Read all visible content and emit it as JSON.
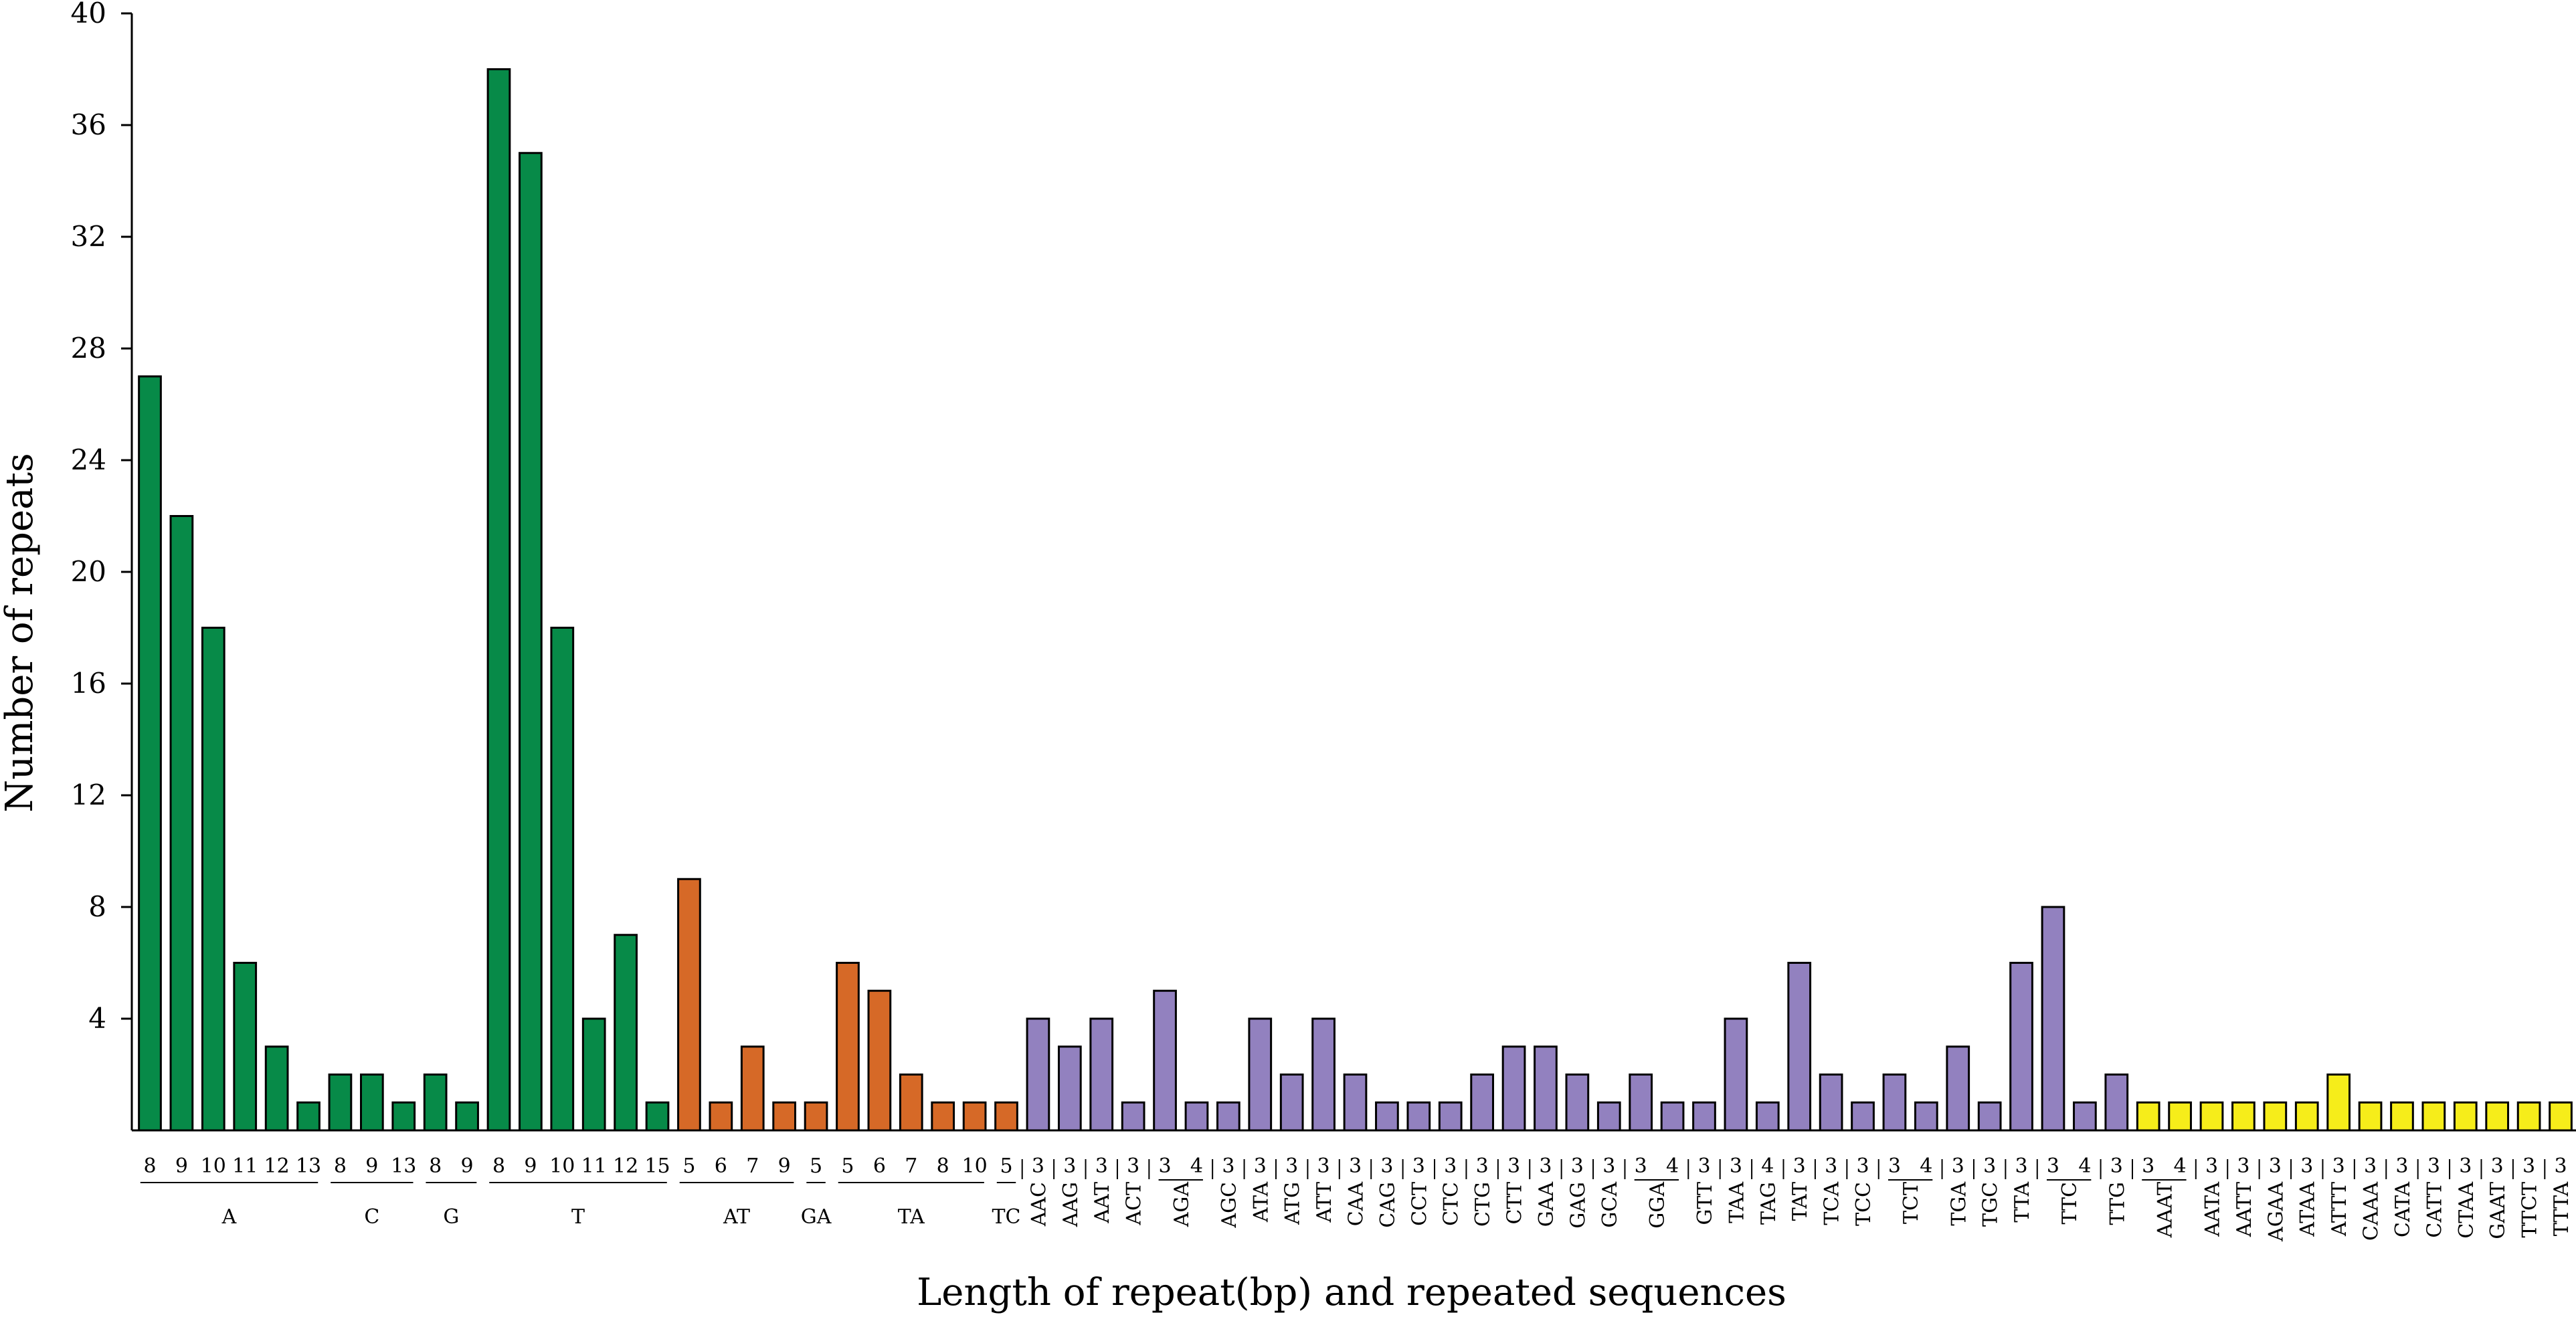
{
  "chart_data": {
    "type": "bar",
    "xlabel": "Length of repeat(bp) and repeated sequences",
    "ylabel": "Number of repeats",
    "ylim": [
      0,
      40
    ],
    "yticks": [
      "4",
      "8",
      "12",
      "16",
      "20",
      "24",
      "28",
      "32",
      "36",
      "40"
    ],
    "colors": {
      "mono": "#078a48",
      "di": "#d66927",
      "tri": "#9281bf",
      "tetra": "#f6ed1a"
    },
    "groups": [
      {
        "name": "A",
        "class": "mono",
        "bars": [
          {
            "len": "8",
            "value": 27
          },
          {
            "len": "9",
            "value": 22
          },
          {
            "len": "10",
            "value": 18
          },
          {
            "len": "11",
            "value": 6
          },
          {
            "len": "12",
            "value": 3
          },
          {
            "len": "13",
            "value": 1
          }
        ]
      },
      {
        "name": "C",
        "class": "mono",
        "bars": [
          {
            "len": "8",
            "value": 2
          },
          {
            "len": "9",
            "value": 2
          },
          {
            "len": "13",
            "value": 1
          }
        ]
      },
      {
        "name": "G",
        "class": "mono",
        "bars": [
          {
            "len": "8",
            "value": 2
          },
          {
            "len": "9",
            "value": 1
          }
        ]
      },
      {
        "name": "T",
        "class": "mono",
        "bars": [
          {
            "len": "8",
            "value": 38
          },
          {
            "len": "9",
            "value": 35
          },
          {
            "len": "10",
            "value": 18
          },
          {
            "len": "11",
            "value": 4
          },
          {
            "len": "12",
            "value": 7
          },
          {
            "len": "15",
            "value": 1
          }
        ]
      },
      {
        "name": "AT",
        "class": "di",
        "bars": [
          {
            "len": "5",
            "value": 9
          },
          {
            "len": "6",
            "value": 1
          },
          {
            "len": "7",
            "value": 3
          },
          {
            "len": "9",
            "value": 1
          }
        ]
      },
      {
        "name": "GA",
        "class": "di",
        "bars": [
          {
            "len": "5",
            "value": 1
          }
        ]
      },
      {
        "name": "TA",
        "class": "di",
        "bars": [
          {
            "len": "5",
            "value": 6
          },
          {
            "len": "6",
            "value": 5
          },
          {
            "len": "7",
            "value": 2
          },
          {
            "len": "8",
            "value": 1
          },
          {
            "len": "10",
            "value": 1
          }
        ]
      },
      {
        "name": "TC",
        "class": "di",
        "bars": [
          {
            "len": "5",
            "value": 1
          }
        ]
      },
      {
        "name": "AAC",
        "class": "tri",
        "bars": [
          {
            "len": "3",
            "value": 4
          }
        ]
      },
      {
        "name": "AAG",
        "class": "tri",
        "bars": [
          {
            "len": "3",
            "value": 3
          }
        ]
      },
      {
        "name": "AAT",
        "class": "tri",
        "bars": [
          {
            "len": "3",
            "value": 4
          }
        ]
      },
      {
        "name": "ACT",
        "class": "tri",
        "bars": [
          {
            "len": "3",
            "value": 1
          }
        ]
      },
      {
        "name": "AGA",
        "class": "tri",
        "bars": [
          {
            "len": "3",
            "value": 5
          },
          {
            "len": "4",
            "value": 1
          }
        ]
      },
      {
        "name": "AGC",
        "class": "tri",
        "bars": [
          {
            "len": "3",
            "value": 1
          }
        ]
      },
      {
        "name": "ATA",
        "class": "tri",
        "bars": [
          {
            "len": "3",
            "value": 4
          }
        ]
      },
      {
        "name": "ATG",
        "class": "tri",
        "bars": [
          {
            "len": "3",
            "value": 2
          }
        ]
      },
      {
        "name": "ATT",
        "class": "tri",
        "bars": [
          {
            "len": "3",
            "value": 4
          }
        ]
      },
      {
        "name": "CAA",
        "class": "tri",
        "bars": [
          {
            "len": "3",
            "value": 2
          }
        ]
      },
      {
        "name": "CAG",
        "class": "tri",
        "bars": [
          {
            "len": "3",
            "value": 1
          }
        ]
      },
      {
        "name": "CCT",
        "class": "tri",
        "bars": [
          {
            "len": "3",
            "value": 1
          }
        ]
      },
      {
        "name": "CTC",
        "class": "tri",
        "bars": [
          {
            "len": "3",
            "value": 1
          }
        ]
      },
      {
        "name": "CTG",
        "class": "tri",
        "bars": [
          {
            "len": "3",
            "value": 2
          }
        ]
      },
      {
        "name": "CTT",
        "class": "tri",
        "bars": [
          {
            "len": "3",
            "value": 3
          }
        ]
      },
      {
        "name": "GAA",
        "class": "tri",
        "bars": [
          {
            "len": "3",
            "value": 3
          }
        ]
      },
      {
        "name": "GAG",
        "class": "tri",
        "bars": [
          {
            "len": "3",
            "value": 2
          }
        ]
      },
      {
        "name": "GCA",
        "class": "tri",
        "bars": [
          {
            "len": "3",
            "value": 1
          }
        ]
      },
      {
        "name": "GGA",
        "class": "tri",
        "bars": [
          {
            "len": "3",
            "value": 2
          },
          {
            "len": "4",
            "value": 1
          }
        ]
      },
      {
        "name": "GTT",
        "class": "tri",
        "bars": [
          {
            "len": "3",
            "value": 1
          }
        ]
      },
      {
        "name": "TAA",
        "class": "tri",
        "bars": [
          {
            "len": "3",
            "value": 4
          }
        ]
      },
      {
        "name": "TAG",
        "class": "tri",
        "bars": [
          {
            "len": "4",
            "value": 1
          }
        ]
      },
      {
        "name": "TAT",
        "class": "tri",
        "bars": [
          {
            "len": "3",
            "value": 6
          }
        ]
      },
      {
        "name": "TCA",
        "class": "tri",
        "bars": [
          {
            "len": "3",
            "value": 2
          }
        ]
      },
      {
        "name": "TCC",
        "class": "tri",
        "bars": [
          {
            "len": "3",
            "value": 1
          }
        ]
      },
      {
        "name": "TCT",
        "class": "tri",
        "bars": [
          {
            "len": "3",
            "value": 2
          },
          {
            "len": "4",
            "value": 1
          }
        ]
      },
      {
        "name": "TGA",
        "class": "tri",
        "bars": [
          {
            "len": "3",
            "value": 3
          }
        ]
      },
      {
        "name": "TGC",
        "class": "tri",
        "bars": [
          {
            "len": "3",
            "value": 1
          }
        ]
      },
      {
        "name": "TTA",
        "class": "tri",
        "bars": [
          {
            "len": "3",
            "value": 6
          }
        ]
      },
      {
        "name": "TTC",
        "class": "tri",
        "bars": [
          {
            "len": "3",
            "value": 8
          },
          {
            "len": "4",
            "value": 1
          }
        ]
      },
      {
        "name": "TTG",
        "class": "tri",
        "bars": [
          {
            "len": "3",
            "value": 2
          }
        ]
      },
      {
        "name": "AAAT",
        "class": "tetra",
        "bars": [
          {
            "len": "3",
            "value": 1
          },
          {
            "len": "4",
            "value": 1
          }
        ]
      },
      {
        "name": "AATA",
        "class": "tetra",
        "bars": [
          {
            "len": "3",
            "value": 1
          }
        ]
      },
      {
        "name": "AATT",
        "class": "tetra",
        "bars": [
          {
            "len": "3",
            "value": 1
          }
        ]
      },
      {
        "name": "AGAA",
        "class": "tetra",
        "bars": [
          {
            "len": "3",
            "value": 1
          }
        ]
      },
      {
        "name": "ATAA",
        "class": "tetra",
        "bars": [
          {
            "len": "3",
            "value": 1
          }
        ]
      },
      {
        "name": "ATTT",
        "class": "tetra",
        "bars": [
          {
            "len": "3",
            "value": 2
          }
        ]
      },
      {
        "name": "CAAA",
        "class": "tetra",
        "bars": [
          {
            "len": "3",
            "value": 1
          }
        ]
      },
      {
        "name": "CATA",
        "class": "tetra",
        "bars": [
          {
            "len": "3",
            "value": 1
          }
        ]
      },
      {
        "name": "CATT",
        "class": "tetra",
        "bars": [
          {
            "len": "3",
            "value": 1
          }
        ]
      },
      {
        "name": "CTAA",
        "class": "tetra",
        "bars": [
          {
            "len": "3",
            "value": 1
          }
        ]
      },
      {
        "name": "GAAT",
        "class": "tetra",
        "bars": [
          {
            "len": "3",
            "value": 1
          }
        ]
      },
      {
        "name": "TTCT",
        "class": "tetra",
        "bars": [
          {
            "len": "3",
            "value": 1
          }
        ]
      },
      {
        "name": "TTTA",
        "class": "tetra",
        "bars": [
          {
            "len": "3",
            "value": 1
          }
        ]
      }
    ]
  }
}
